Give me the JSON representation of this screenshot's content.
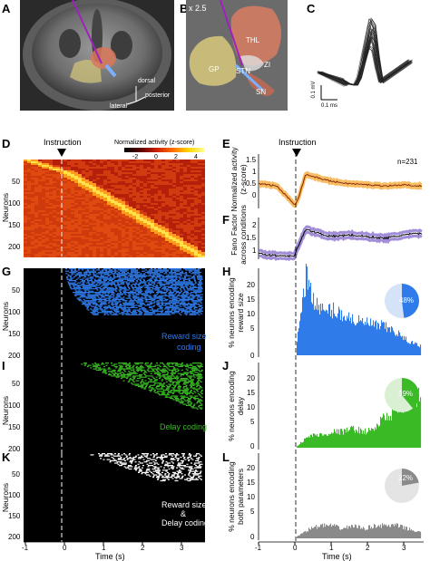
{
  "panel_letters": {
    "a": "A",
    "b": "B",
    "c": "C",
    "d": "D",
    "e": "E",
    "f": "F",
    "g": "G",
    "h": "H",
    "i": "I",
    "j": "J",
    "k": "K",
    "l": "L"
  },
  "panel_a": {
    "dir_dorsal": "dorsal",
    "dir_posterior": "posterior",
    "dir_lateral": "lateral"
  },
  "panel_b": {
    "zoom": "x 2.5",
    "thl": "THL",
    "gp": "GP",
    "stn": "STN",
    "zi": "ZI",
    "sn": "SN"
  },
  "panel_c": {
    "scale_y": "0.1 mV",
    "scale_x": "0.1 ms"
  },
  "instruction": "Instruction",
  "panel_d": {
    "colorbar_title": "Normalized activity (z-score)",
    "colorbar_ticks": [
      "-2",
      "0",
      "2",
      "4"
    ],
    "ylabel": "Neurons",
    "yticks": [
      "50",
      "100",
      "150",
      "200"
    ]
  },
  "panel_g": {
    "ylabel": "Neurons",
    "yticks": [
      "50",
      "100",
      "150",
      "200"
    ],
    "label": "Reward size coding",
    "label_l1": "Reward size",
    "label_l2": "coding"
  },
  "panel_i": {
    "ylabel": "Neurons",
    "yticks": [
      "50",
      "100",
      "150",
      "200"
    ],
    "label_l1": "Delay coding"
  },
  "panel_k": {
    "ylabel": "Neurons",
    "yticks": [
      "50",
      "100",
      "150",
      "200"
    ],
    "label_l1": "Reward size",
    "label_l2": "&",
    "label_l3": "Delay coding"
  },
  "xaxis_left": {
    "ticks": [
      "-1",
      "0",
      "1",
      "2",
      "3"
    ],
    "label": "Time (s)"
  },
  "xaxis_right": {
    "ticks": [
      "-1",
      "0",
      "1",
      "2",
      "3"
    ],
    "label": "Time (s)"
  },
  "panel_e": {
    "ylabel_l1": "Normalized activity",
    "ylabel_l2": "(z-score)",
    "yticks": [
      "1.5",
      "1",
      "0.5",
      "0"
    ],
    "n": "n=231"
  },
  "panel_f": {
    "ylabel_l1": "Fano Factor",
    "ylabel_l2": "across conditions",
    "yticks": [
      "2",
      "1.5",
      "1"
    ]
  },
  "panel_h": {
    "ylabel_l1": "% neurons encoding",
    "ylabel_l2": "reward size",
    "yticks": [
      "20",
      "15",
      "10",
      "5",
      "0"
    ],
    "pie_pct": "48%",
    "pie_value": 48
  },
  "panel_j": {
    "ylabel_l1": "% neurons encoding",
    "ylabel_l2": "delay",
    "yticks": [
      "20",
      "15",
      "10",
      "5",
      "0"
    ],
    "pie_pct": "39%",
    "pie_value": 39
  },
  "panel_l": {
    "ylabel_l1": "% neurons encoding",
    "ylabel_l2": "both parameters",
    "yticks": [
      "20",
      "15",
      "10",
      "5",
      "0"
    ],
    "pie_pct": "22%",
    "pie_value": 22
  },
  "chart_data": [
    {
      "type": "line",
      "panel": "E",
      "x": [
        -1,
        -0.5,
        0,
        0.1,
        0.3,
        0.5,
        1,
        1.5,
        2,
        2.5,
        3,
        3.5
      ],
      "y": [
        0.4,
        0.3,
        -0.5,
        -0.2,
        0.8,
        0.7,
        0.5,
        0.4,
        0.35,
        0.3,
        0.35,
        0.3
      ],
      "xlim": [
        -1,
        3.5
      ],
      "ylim": [
        -0.5,
        1.5
      ]
    },
    {
      "type": "line",
      "panel": "F",
      "x": [
        -1,
        -0.5,
        0,
        0.1,
        0.3,
        0.5,
        1,
        1.5,
        2,
        2.5,
        3,
        3.5
      ],
      "y": [
        1.05,
        1.0,
        1.0,
        1.3,
        1.75,
        1.7,
        1.55,
        1.6,
        1.55,
        1.5,
        1.6,
        1.65
      ],
      "xlim": [
        -1,
        3.5
      ],
      "ylim": [
        1,
        2
      ]
    },
    {
      "type": "bar",
      "panel": "H",
      "color": "#2f7bea",
      "x": [
        0.1,
        0.2,
        0.3,
        0.4,
        0.5,
        0.6,
        0.8,
        1,
        1.2,
        1.4,
        1.6,
        1.8,
        2,
        2.2,
        2.4,
        2.6,
        2.8,
        3,
        3.2,
        3.4
      ],
      "values": [
        8,
        18,
        24,
        21,
        18,
        15,
        13,
        14,
        13,
        12,
        11,
        10,
        10,
        9,
        9,
        8,
        7,
        5,
        4,
        3
      ],
      "ylim": [
        0,
        25
      ]
    },
    {
      "type": "bar",
      "panel": "J",
      "color": "#3aba25",
      "x": [
        0.1,
        0.3,
        0.5,
        0.8,
        1,
        1.3,
        1.6,
        1.9,
        2.2,
        2.4,
        2.6,
        2.8,
        3,
        3.2,
        3.4
      ],
      "values": [
        1,
        3,
        4,
        4,
        5,
        5,
        6,
        5,
        6,
        9,
        10,
        12,
        13,
        14,
        16
      ],
      "ylim": [
        0,
        25
      ]
    },
    {
      "type": "bar",
      "panel": "L",
      "color": "#8a8a8a",
      "x": [
        0.1,
        0.4,
        0.7,
        1,
        1.3,
        1.6,
        1.9,
        2.2,
        2.5,
        2.8,
        3.1,
        3.4
      ],
      "values": [
        1,
        3,
        4,
        4,
        3,
        4,
        3,
        4,
        4,
        4,
        3,
        2
      ],
      "ylim": [
        0,
        25
      ]
    }
  ]
}
